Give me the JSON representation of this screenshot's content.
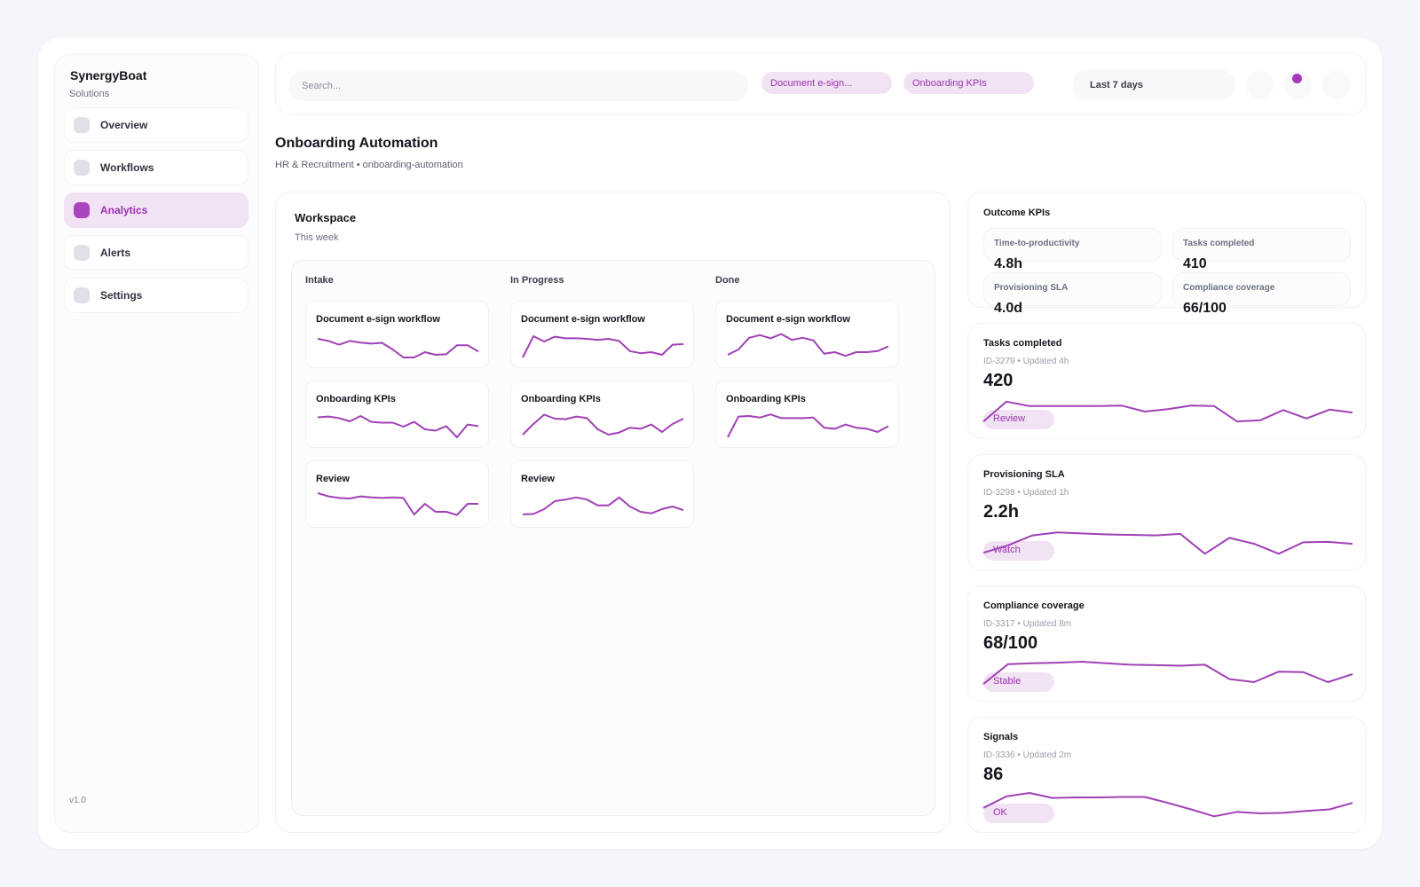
{
  "accent": "#a040b5",
  "sidebar": {
    "brand": "SynergyBoat",
    "brand_sub": "Solutions",
    "version": "v1.0",
    "items": [
      {
        "label": "Overview",
        "icon": "square-icon"
      },
      {
        "label": "Workflows",
        "icon": "square-icon"
      },
      {
        "label": "Analytics",
        "icon": "square-icon",
        "active": true
      },
      {
        "label": "Alerts",
        "icon": "square-icon"
      },
      {
        "label": "Settings",
        "icon": "square-icon"
      }
    ]
  },
  "topbar": {
    "search_placeholder": "Search...",
    "chips": [
      "Document e-sign...",
      "Onboarding KPIs"
    ],
    "range": "Last 7 days"
  },
  "page": {
    "title": "Onboarding Automation",
    "breadcrumb": "HR & Recruitment • onboarding-automation"
  },
  "workspace": {
    "title": "Workspace",
    "subtitle": "This week",
    "columns": [
      {
        "name": "Intake",
        "cards": [
          {
            "title": "Document e-sign workflow",
            "spark": [
              0.7,
              0.62,
              0.48,
              0.62,
              0.56,
              0.52,
              0.55,
              0.3,
              0,
              0,
              0.2,
              0.1,
              0.12,
              0.46,
              0.46,
              0.22
            ]
          },
          {
            "title": "Onboarding KPIs",
            "spark": [
              0.75,
              0.78,
              0.72,
              0.6,
              0.8,
              0.58,
              0.55,
              0.55,
              0.4,
              0.58,
              0.3,
              0.25,
              0.42,
              0,
              0.48,
              0.42
            ]
          },
          {
            "title": "Review",
            "spark": [
              0.9,
              0.78,
              0.72,
              0.7,
              0.78,
              0.74,
              0.72,
              0.74,
              0.72,
              0.1,
              0.5,
              0.2,
              0.2,
              0.08,
              0.5,
              0.5
            ]
          }
        ]
      },
      {
        "name": "In Progress",
        "cards": [
          {
            "title": "Document e-sign workflow",
            "spark": [
              0,
              0.8,
              0.6,
              0.78,
              0.72,
              0.72,
              0.7,
              0.66,
              0.7,
              0.62,
              0.24,
              0.16,
              0.2,
              0.1,
              0.48,
              0.5
            ]
          },
          {
            "title": "Onboarding KPIs",
            "spark": [
              0.1,
              0.5,
              0.85,
              0.7,
              0.68,
              0.78,
              0.72,
              0.3,
              0.1,
              0.18,
              0.36,
              0.32,
              0.48,
              0.2,
              0.5,
              0.7
            ]
          },
          {
            "title": "Review",
            "spark": [
              0.1,
              0.12,
              0.3,
              0.6,
              0.66,
              0.74,
              0.66,
              0.44,
              0.44,
              0.74,
              0.4,
              0.2,
              0.14,
              0.3,
              0.4,
              0.26
            ]
          }
        ]
      },
      {
        "name": "Done",
        "cards": [
          {
            "title": "Document e-sign workflow",
            "spark": [
              0.1,
              0.3,
              0.74,
              0.84,
              0.72,
              0.88,
              0.66,
              0.74,
              0.64,
              0.14,
              0.2,
              0.06,
              0.2,
              0.2,
              0.24,
              0.42
            ]
          },
          {
            "title": "Onboarding KPIs",
            "spark": [
              0,
              0.78,
              0.8,
              0.74,
              0.86,
              0.72,
              0.72,
              0.72,
              0.74,
              0.36,
              0.32,
              0.48,
              0.36,
              0.32,
              0.2,
              0.42
            ]
          }
        ]
      }
    ]
  },
  "outcome": {
    "title": "Outcome KPIs",
    "tiles": [
      {
        "label": "Time-to-productivity",
        "value": "4.8h"
      },
      {
        "label": "Tasks completed",
        "value": "410"
      },
      {
        "label": "Provisioning SLA",
        "value": "4.0d"
      },
      {
        "label": "Compliance coverage",
        "value": "66/100"
      }
    ]
  },
  "metrics": [
    {
      "title": "Tasks completed",
      "meta": "ID-3279 • Updated 4h",
      "value": "420",
      "badge": "Review",
      "spark": [
        0.1,
        0.9,
        0.72,
        0.72,
        0.72,
        0.72,
        0.74,
        0.5,
        0.6,
        0.74,
        0.72,
        0.1,
        0.15,
        0.56,
        0.22,
        0.58,
        0.46
      ]
    },
    {
      "title": "Provisioning SLA",
      "meta": "ID-3298 • Updated 1h",
      "value": "2.2h",
      "badge": "Watch",
      "spark": [
        0.1,
        0.4,
        0.8,
        0.92,
        0.88,
        0.84,
        0.82,
        0.8,
        0.86,
        0.06,
        0.7,
        0.46,
        0.06,
        0.52,
        0.54,
        0.46
      ]
    },
    {
      "title": "Compliance coverage",
      "meta": "ID-3317 • Updated 8m",
      "value": "68/100",
      "badge": "Stable",
      "spark": [
        0.1,
        0.9,
        0.94,
        0.96,
        1,
        0.94,
        0.88,
        0.86,
        0.84,
        0.88,
        0.3,
        0.18,
        0.6,
        0.58,
        0.18,
        0.5
      ]
    },
    {
      "title": "Signals",
      "meta": "ID-3336 • Updated 2m",
      "value": "86",
      "badge": "OK",
      "spark": [
        0.4,
        0.86,
        1,
        0.8,
        0.82,
        0.82,
        0.84,
        0.84,
        0.6,
        0.34,
        0.06,
        0.24,
        0.18,
        0.2,
        0.28,
        0.34,
        0.6
      ]
    }
  ]
}
